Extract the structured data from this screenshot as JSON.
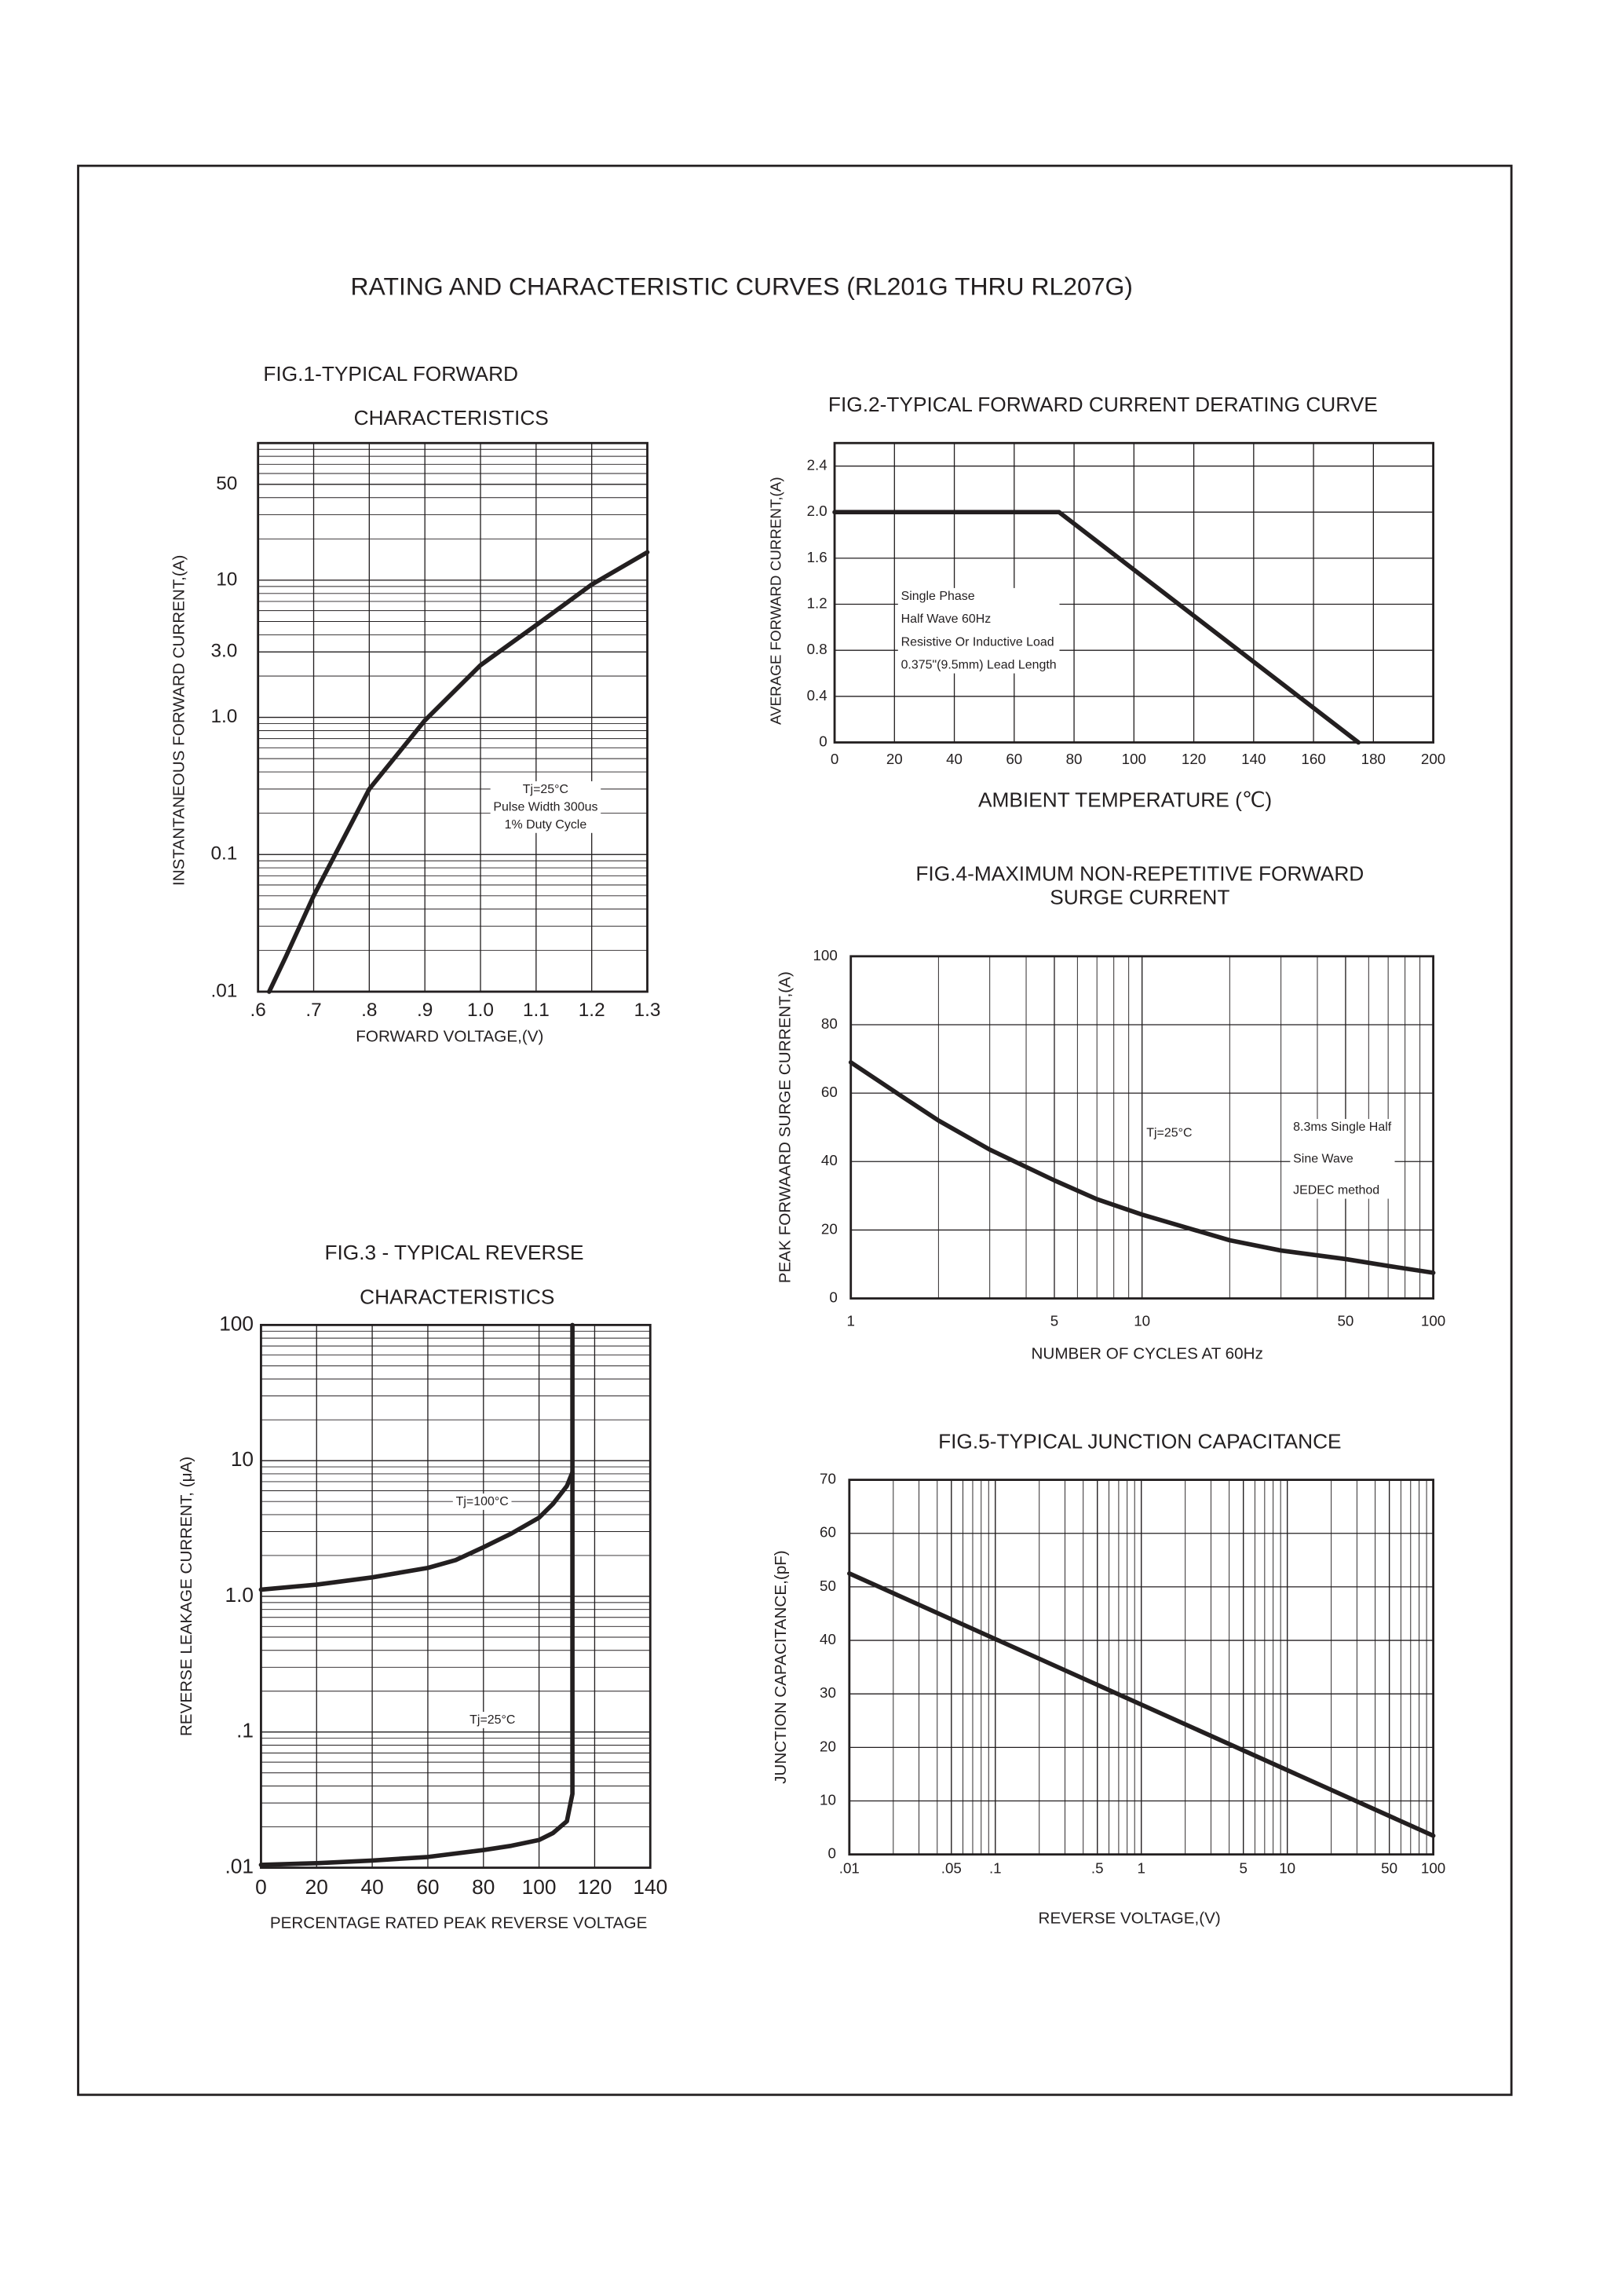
{
  "page_title": "RATING AND CHARACTERISTIC CURVES (RL201G THRU RL207G)",
  "chart_data": [
    {
      "type": "line",
      "title_lines": [
        "FIG.1-TYPICAL FORWARD",
        "CHARACTERISTICS"
      ],
      "x_label": "FORWARD VOLTAGE,(V)",
      "y_label": "INSTANTANEOUS FORWARD CURRENT,(A)",
      "xscale": "linear",
      "yscale": "log",
      "xlim": [
        0.6,
        1.3
      ],
      "ylim": [
        0.01,
        100
      ],
      "xticks": [
        {
          "value": 0.6,
          "label": ".6"
        },
        {
          "value": 0.7,
          "label": ".7"
        },
        {
          "value": 0.8,
          "label": ".8"
        },
        {
          "value": 0.9,
          "label": ".9"
        },
        {
          "value": 1.0,
          "label": "1.0"
        },
        1.1,
        1.2,
        1.3
      ],
      "yticks": [
        {
          "value": 0.01,
          "label": ".01"
        },
        0.1,
        {
          "value": 1,
          "label": "1.0"
        },
        {
          "value": 3,
          "label": "3.0"
        },
        10,
        50
      ],
      "grid": true,
      "minor_grid": true,
      "annotations": [
        {
          "lines": [
            "Tj=25°C",
            "Pulse Width 300us",
            "1% Duty Cycle"
          ]
        }
      ],
      "series": [
        {
          "color": "#231f20",
          "x": [
            0.62,
            0.65,
            0.7,
            0.8,
            0.9,
            1.0,
            1.1,
            1.2,
            1.3
          ],
          "values": [
            0.01,
            0.018,
            0.05,
            0.3,
            0.95,
            2.4,
            4.7,
            9.3,
            16
          ]
        }
      ]
    },
    {
      "type": "line",
      "title_lines": [
        "FIG.2-TYPICAL FORWARD CURRENT DERATING CURVE"
      ],
      "x_label": "AMBIENT TEMPERATURE (℃)",
      "y_label": "AVERAGE FORWARD CURRENT,(A)",
      "xscale": "linear",
      "yscale": "linear",
      "xlim": [
        0,
        200
      ],
      "ylim": [
        0,
        2.6
      ],
      "xticks": [
        0,
        20,
        40,
        60,
        80,
        100,
        120,
        140,
        160,
        180,
        200
      ],
      "yticks": [
        0,
        0.4,
        0.8,
        1.2,
        1.6,
        {
          "value": 2,
          "label": "2.0"
        },
        2.4
      ],
      "grid": true,
      "minor_grid": false,
      "annotations": [
        {
          "lines": [
            "Single Phase",
            "Half Wave 60Hz",
            "Resistive Or Inductive Load",
            "0.375\"(9.5mm) Lead Length"
          ]
        }
      ],
      "series": [
        {
          "color": "#231f20",
          "x": [
            0,
            75,
            175
          ],
          "values": [
            2.0,
            2.0,
            0
          ]
        }
      ]
    },
    {
      "type": "line",
      "title_lines": [
        "FIG.3 - TYPICAL REVERSE",
        "CHARACTERISTICS"
      ],
      "x_label": "PERCENTAGE RATED PEAK REVERSE VOLTAGE",
      "y_label": "REVERSE LEAKAGE CURRENT, (μA)",
      "xscale": "linear",
      "yscale": "log",
      "xlim": [
        0,
        140
      ],
      "ylim": [
        0.01,
        100
      ],
      "xticks": [
        0,
        20,
        40,
        60,
        80,
        100,
        120,
        140
      ],
      "yticks": [
        {
          "value": 0.01,
          "label": ".01"
        },
        {
          "value": 0.1,
          "label": ".1"
        },
        {
          "value": 1,
          "label": "1.0"
        },
        10,
        100
      ],
      "grid": true,
      "minor_grid": true,
      "annotations": [],
      "series": [
        {
          "name": "Tj=100°C",
          "color": "#231f20",
          "x": [
            0,
            20,
            40,
            60,
            70,
            80,
            90,
            100,
            105,
            110,
            112
          ],
          "values": [
            1.12,
            1.22,
            1.38,
            1.62,
            1.85,
            2.3,
            2.9,
            3.8,
            4.8,
            6.5,
            8.2
          ]
        },
        {
          "name": "Tj=25°C",
          "color": "#231f20",
          "x": [
            0,
            20,
            40,
            60,
            80,
            90,
            100,
            105,
            110,
            112,
            112
          ],
          "values": [
            0.0105,
            0.0108,
            0.0113,
            0.012,
            0.0135,
            0.0145,
            0.016,
            0.018,
            0.022,
            0.035,
            100
          ]
        }
      ]
    },
    {
      "type": "line",
      "title_lines": [
        "FIG.4-MAXIMUM NON-REPETITIVE FORWARD",
        "SURGE CURRENT"
      ],
      "x_label": "NUMBER OF CYCLES AT 60Hz",
      "y_label": "PEAK FORWAARD SURGE CURRENT,(A)",
      "xscale": "log",
      "yscale": "linear",
      "xlim": [
        1,
        100
      ],
      "ylim": [
        0,
        100
      ],
      "xticks": [
        1,
        5,
        10,
        50,
        100
      ],
      "yticks": [
        0,
        20,
        40,
        60,
        80,
        100
      ],
      "grid": true,
      "minor_grid": true,
      "annotations": [
        {
          "lines": [
            "Tj=25°C"
          ]
        },
        {
          "lines": [
            "8.3ms Single Half",
            "Sine Wave",
            "JEDEC method"
          ]
        }
      ],
      "series": [
        {
          "color": "#231f20",
          "x": [
            1,
            1.5,
            2,
            3,
            5,
            7,
            10,
            20,
            30,
            50,
            70,
            100
          ],
          "values": [
            69,
            59,
            52,
            43.5,
            34.5,
            29,
            24.5,
            17,
            14,
            11.5,
            9.5,
            7.5
          ]
        }
      ]
    },
    {
      "type": "line",
      "title_lines": [
        "FIG.5-TYPICAL JUNCTION CAPACITANCE"
      ],
      "x_label": "REVERSE VOLTAGE,(V)",
      "y_label": "JUNCTION CAPACITANCE,(pF)",
      "xscale": "log",
      "yscale": "linear",
      "xlim": [
        0.01,
        100
      ],
      "ylim": [
        0,
        70
      ],
      "xticks": [
        {
          "value": 0.01,
          "label": ".01"
        },
        {
          "value": 0.05,
          "label": ".05"
        },
        {
          "value": 0.1,
          "label": ".1"
        },
        {
          "value": 0.5,
          "label": ".5"
        },
        1,
        5,
        10,
        50,
        100
      ],
      "yticks": [
        0,
        10,
        20,
        30,
        40,
        50,
        60,
        70
      ],
      "grid": true,
      "minor_grid": true,
      "annotations": [],
      "series": [
        {
          "color": "#231f20",
          "x": [
            0.01,
            100
          ],
          "values": [
            52.5,
            3.5
          ]
        }
      ]
    }
  ]
}
